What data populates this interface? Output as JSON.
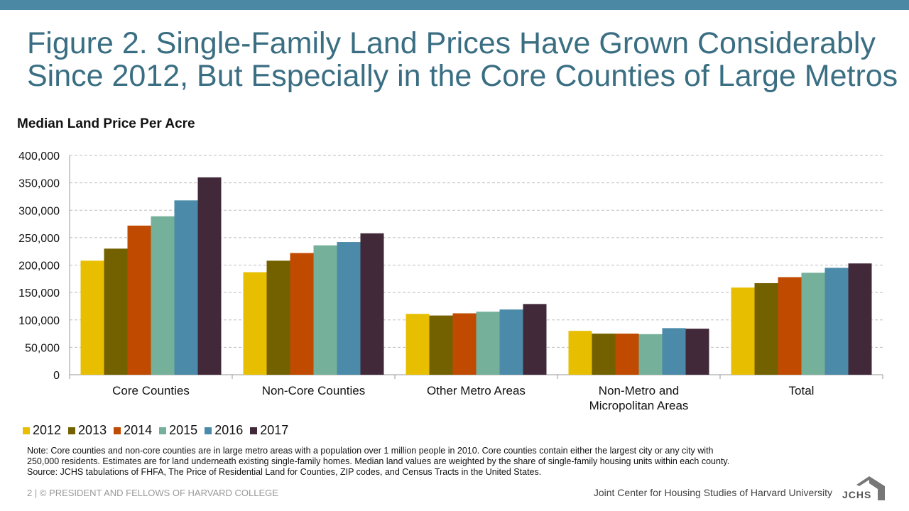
{
  "page": {
    "title_lines": [
      "Figure 2. Single-Family Land Prices Have Grown Considerably",
      "Since 2012, But Especially in the Core Counties of Large Metros"
    ],
    "note_lines": [
      "Note: Core counties and non-core counties are in large metro areas with a population over 1 million people in 2010. Core counties contain either the largest city or any city with",
      "250,000 residents. Estimates are for land underneath existing single-family homes. Median land values are weighted by the share of single-family housing units within each county.",
      "Source: JCHS tabulations of FHFA, The Price of Residential Land for Counties, ZIP codes, and Census Tracts in the United States."
    ],
    "footer_left": "2 | © PRESIDENT AND FELLOWS OF HARVARD COLLEGE",
    "footer_right": "Joint Center for Housing Studies of Harvard University",
    "logo_text": "JCHS"
  },
  "colors": {
    "band": "#4b88a4",
    "series": [
      "#e8bf00",
      "#736100",
      "#c04a00",
      "#75b09a",
      "#4b8aa8",
      "#41293a"
    ]
  },
  "chart_data": {
    "type": "bar",
    "title": "Median Land Price Per Acre",
    "xlabel": "",
    "ylabel": "Median Land Price Per Acre",
    "ylim": [
      0,
      400000
    ],
    "yticks": [
      0,
      50000,
      100000,
      150000,
      200000,
      250000,
      300000,
      350000,
      400000
    ],
    "ytick_labels": [
      "0",
      "50,000",
      "100,000",
      "150,000",
      "200,000",
      "250,000",
      "300,000",
      "350,000",
      "400,000"
    ],
    "grid": true,
    "legend_position": "bottom-left",
    "categories": [
      [
        "Core Counties"
      ],
      [
        "Non-Core Counties"
      ],
      [
        "Other Metro Areas"
      ],
      [
        "Non-Metro and",
        "Micropolitan Areas"
      ],
      [
        "Total"
      ]
    ],
    "series": [
      {
        "name": "2012",
        "values": [
          208000,
          187000,
          111000,
          80000,
          159000
        ]
      },
      {
        "name": "2013",
        "values": [
          230000,
          208000,
          108000,
          75000,
          167000
        ]
      },
      {
        "name": "2014",
        "values": [
          272000,
          222000,
          112000,
          75000,
          178000
        ]
      },
      {
        "name": "2015",
        "values": [
          289000,
          236000,
          115000,
          74000,
          186000
        ]
      },
      {
        "name": "2016",
        "values": [
          318000,
          242000,
          119000,
          85000,
          195000
        ]
      },
      {
        "name": "2017",
        "values": [
          360000,
          258000,
          129000,
          84000,
          203000
        ]
      }
    ]
  }
}
